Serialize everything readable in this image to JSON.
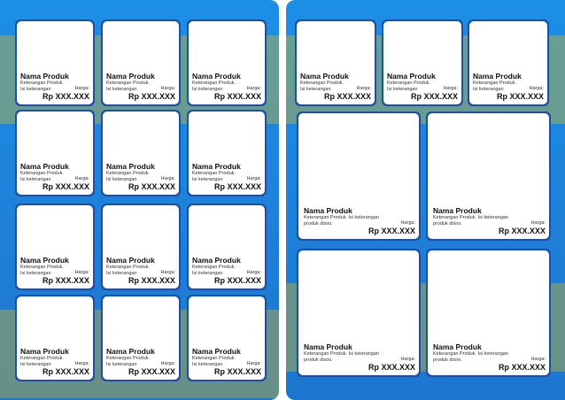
{
  "product_name": "Nama Produk",
  "small_desc_line1": "Keterangan Produk.",
  "small_desc_line2": "Isi keterangan",
  "large_desc_line1": "Keterangan Produk. Isi keterangan",
  "large_desc_line2": "produk disini.",
  "price_label": "Harga:",
  "price_value": "Rp XXX.XXX",
  "colors": {
    "page_blue": "#1f7fd8",
    "accent_yellow": "#f6c000",
    "card_border": "#1e4fa3"
  }
}
